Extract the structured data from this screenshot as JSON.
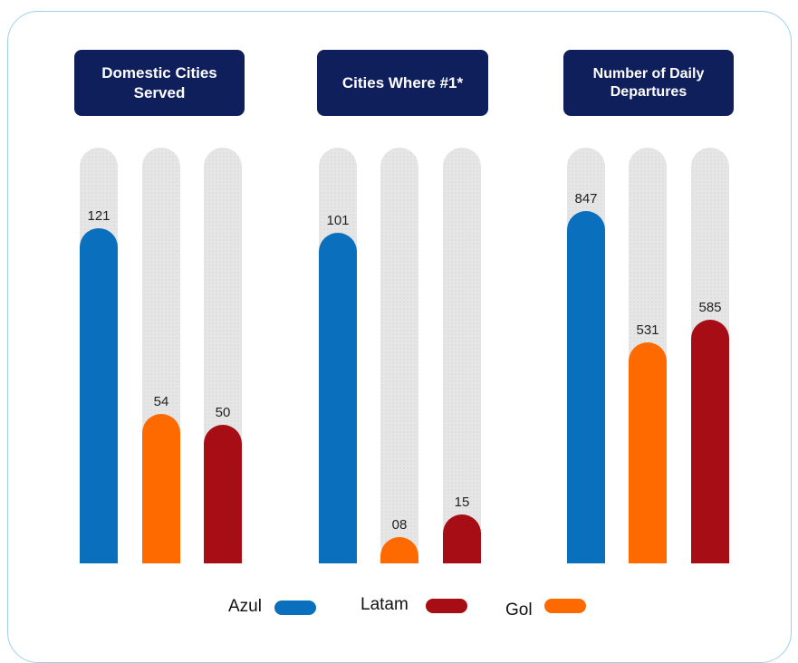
{
  "chart_data": {
    "type": "bar",
    "legend": [
      {
        "name": "Azul",
        "color": "#0a6fbd"
      },
      {
        "name": "Latam",
        "color": "#a60d14"
      },
      {
        "name": "Gol",
        "color": "#ff6a00"
      }
    ],
    "panels": [
      {
        "title": "Domestic Cities Served",
        "ymax": 150,
        "bars": [
          {
            "series": "Azul",
            "value": 121,
            "label": "121"
          },
          {
            "series": "Gol",
            "value": 54,
            "label": "54"
          },
          {
            "series": "Latam",
            "value": 50,
            "label": "50"
          }
        ]
      },
      {
        "title": "Cities Where #1*",
        "ymax": 127,
        "bars": [
          {
            "series": "Azul",
            "value": 101,
            "label": "101"
          },
          {
            "series": "Gol",
            "value": 8,
            "label": "08"
          },
          {
            "series": "Latam",
            "value": 15,
            "label": "15"
          }
        ]
      },
      {
        "title": "Number of Daily Departures",
        "ymax": 1000,
        "bars": [
          {
            "series": "Azul",
            "value": 847,
            "label": "847"
          },
          {
            "series": "Gol",
            "value": 531,
            "label": "531"
          },
          {
            "series": "Latam",
            "value": 585,
            "label": "585"
          }
        ]
      }
    ]
  }
}
